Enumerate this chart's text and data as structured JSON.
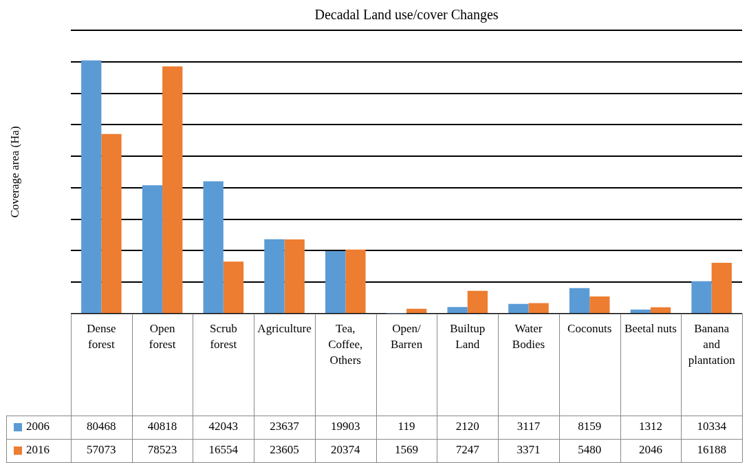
{
  "chart_data": {
    "type": "bar",
    "title": "Decadal Land use/cover Changes",
    "ylabel": "Coverage area (Ha)",
    "categories": [
      "Dense forest",
      "Open forest",
      "Scrub forest",
      "Agriculture",
      "Tea, Coffee, Others",
      "Open/ Barren",
      "Builtup Land",
      "Water Bodies",
      "Coconuts",
      "Beetal nuts",
      "Banana and plantation"
    ],
    "series": [
      {
        "name": "2006",
        "color": "#5b9bd5",
        "values": [
          80468,
          40818,
          42043,
          23637,
          19903,
          119,
          2120,
          3117,
          8159,
          1312,
          10334
        ]
      },
      {
        "name": "2016",
        "color": "#ed7d31",
        "values": [
          57073,
          78523,
          16554,
          23605,
          20374,
          1569,
          7247,
          3371,
          5480,
          2046,
          16188
        ]
      }
    ],
    "ylim": [
      0,
      90000
    ],
    "yticks": [
      {
        "value": 0,
        "label": null
      },
      {
        "value": 10000,
        "label": null
      },
      {
        "value": 20000,
        "label": null
      },
      {
        "value": 30000,
        "label": null
      },
      {
        "value": 40000,
        "label": null
      },
      {
        "value": 50000,
        "label": null
      },
      {
        "value": 60000,
        "label": null
      },
      {
        "value": 70000,
        "label": null
      },
      {
        "value": 80000,
        "label": null
      },
      {
        "value": 90000,
        "label": null
      }
    ],
    "grid": "y",
    "legend": "bottom",
    "data_labels": true
  }
}
